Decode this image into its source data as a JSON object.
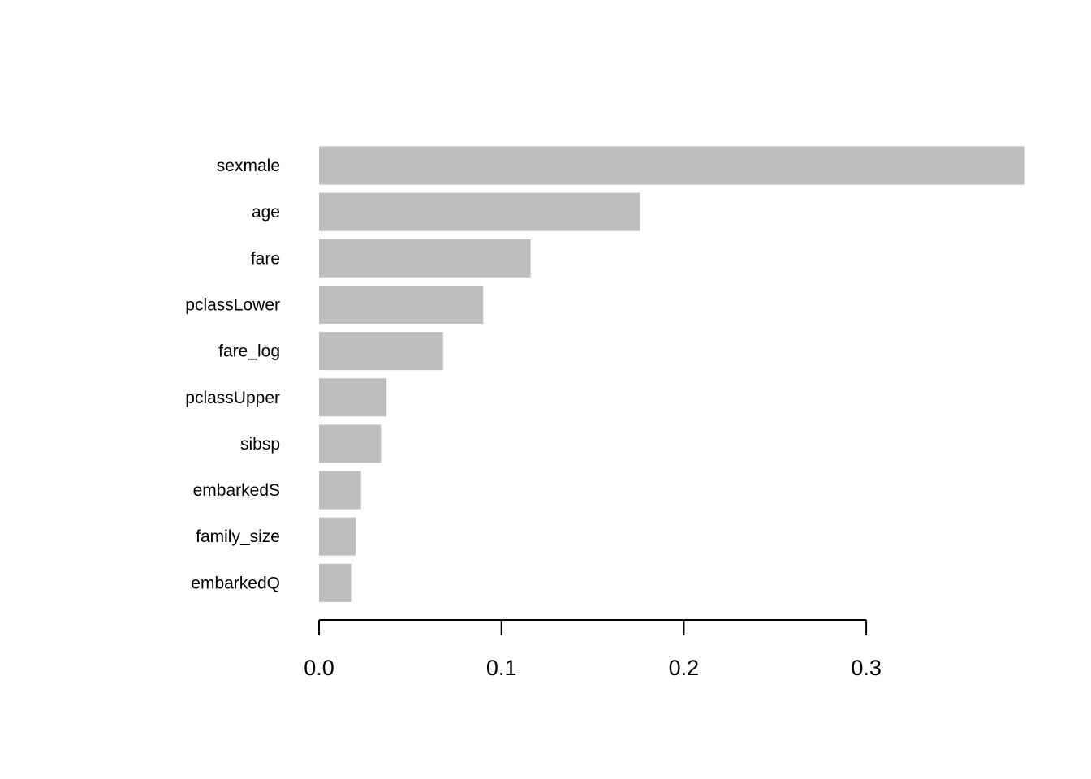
{
  "chart_data": {
    "type": "bar",
    "orientation": "horizontal",
    "categories": [
      "sexmale",
      "age",
      "fare",
      "pclassLower",
      "fare_log",
      "pclassUpper",
      "sibsp",
      "embarkedS",
      "family_size",
      "embarkedQ"
    ],
    "values": [
      0.387,
      0.176,
      0.116,
      0.09,
      0.068,
      0.037,
      0.034,
      0.023,
      0.02,
      0.018
    ],
    "title": "",
    "xlabel": "",
    "ylabel": "",
    "xlim": [
      0,
      0.387
    ],
    "xticks": [
      0.0,
      0.1,
      0.2,
      0.3
    ],
    "xtick_labels": [
      "0.0",
      "0.1",
      "0.2",
      "0.3"
    ],
    "grid": false,
    "bar_color": "#bebebe"
  }
}
